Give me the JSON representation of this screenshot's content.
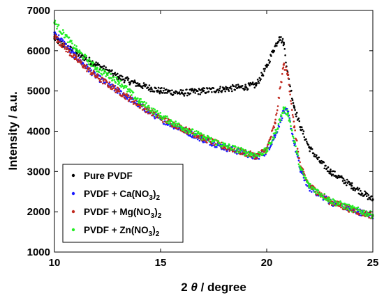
{
  "chart_data": {
    "type": "scatter",
    "title": "",
    "xlabel_prefix": "2 ",
    "xlabel_symbol": "θ",
    "xlabel_suffix": " / degree",
    "ylabel": "Intensity / a.u.",
    "xlim": [
      10,
      25
    ],
    "ylim": [
      1000,
      7000
    ],
    "xticks": [
      10,
      15,
      20,
      25
    ],
    "yticks": [
      1000,
      2000,
      3000,
      4000,
      5000,
      6000,
      7000
    ],
    "legend_position": "bottom-left",
    "grid": false,
    "series": [
      {
        "name": "Pure PVDF",
        "name_parts": {
          "base": "Pure PVDF",
          "sub": "",
          "tail": ""
        },
        "color": "#000000",
        "x": [
          10,
          11,
          12,
          13,
          14,
          15,
          16,
          17,
          18,
          19,
          19.5,
          20,
          20.3,
          20.6,
          20.8,
          21,
          21.3,
          21.6,
          22,
          22.5,
          23,
          24,
          25
        ],
        "y": [
          6300,
          5950,
          5650,
          5350,
          5150,
          5000,
          4950,
          5000,
          5050,
          5100,
          5150,
          5600,
          6000,
          6330,
          6200,
          5400,
          4600,
          4100,
          3600,
          3250,
          3000,
          2650,
          2300
        ]
      },
      {
        "name": "PVDF + Ca(NO3)2",
        "name_parts": {
          "base": "PVDF + Ca(NO",
          "sub": "3",
          "tail": ")2"
        },
        "color": "#1a1aff",
        "x": [
          10,
          11,
          12,
          13,
          14,
          15,
          16,
          17,
          18,
          19,
          19.5,
          20,
          20.4,
          20.8,
          21,
          21.3,
          21.6,
          22,
          23,
          24,
          25
        ],
        "y": [
          6450,
          5850,
          5350,
          5000,
          4650,
          4300,
          4050,
          3800,
          3600,
          3450,
          3350,
          3500,
          3900,
          4500,
          4480,
          3700,
          3000,
          2600,
          2250,
          2050,
          1900
        ]
      },
      {
        "name": "PVDF + Mg(NO3)2",
        "name_parts": {
          "base": "PVDF + Mg(NO",
          "sub": "3",
          "tail": ")2"
        },
        "color": "#c0281e",
        "x": [
          10,
          11,
          12,
          13,
          14,
          15,
          16,
          17,
          18,
          19,
          19.5,
          20,
          20.4,
          20.8,
          21,
          21.3,
          21.6,
          22,
          23,
          24,
          25
        ],
        "y": [
          6350,
          5800,
          5350,
          5000,
          4650,
          4330,
          4080,
          3830,
          3620,
          3460,
          3380,
          3550,
          4200,
          5650,
          5400,
          4100,
          3100,
          2650,
          2250,
          2050,
          1900
        ]
      },
      {
        "name": "PVDF + Zn(NO3)2",
        "name_parts": {
          "base": "PVDF + Zn(NO",
          "sub": "3",
          "tail": ")2"
        },
        "color": "#22ee22",
        "x": [
          10,
          11,
          12,
          13,
          14,
          15,
          16,
          17,
          18,
          19,
          19.5,
          20,
          20.4,
          20.8,
          21,
          21.3,
          21.6,
          22,
          23,
          24,
          25
        ],
        "y": [
          6700,
          6050,
          5550,
          5250,
          4750,
          4380,
          4100,
          3860,
          3650,
          3480,
          3400,
          3520,
          3950,
          4550,
          4450,
          3750,
          3050,
          2650,
          2280,
          2080,
          1920
        ]
      }
    ]
  }
}
